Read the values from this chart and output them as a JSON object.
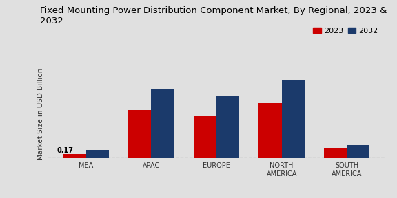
{
  "title": "Fixed Mounting Power Distribution Component Market, By Regional, 2023 &\n2032",
  "ylabel": "Market Size in USD Billion",
  "categories": [
    "MEA",
    "APAC",
    "EUROPE",
    "NORTH\nAMERICA",
    "SOUTH\nAMERICA"
  ],
  "values_2023": [
    0.17,
    1.85,
    1.6,
    2.1,
    0.38
  ],
  "values_2032": [
    0.32,
    2.65,
    2.4,
    3.0,
    0.52
  ],
  "color_2023": "#cc0000",
  "color_2032": "#1b3a6b",
  "annotation_text": "0.17",
  "legend_labels": [
    "2023",
    "2032"
  ],
  "background_color": "#e0e0e0",
  "ylim": [
    0,
    3.4
  ],
  "bar_width": 0.35,
  "title_fontsize": 9.5,
  "axis_label_fontsize": 7.5,
  "tick_fontsize": 7,
  "legend_fontsize": 8
}
